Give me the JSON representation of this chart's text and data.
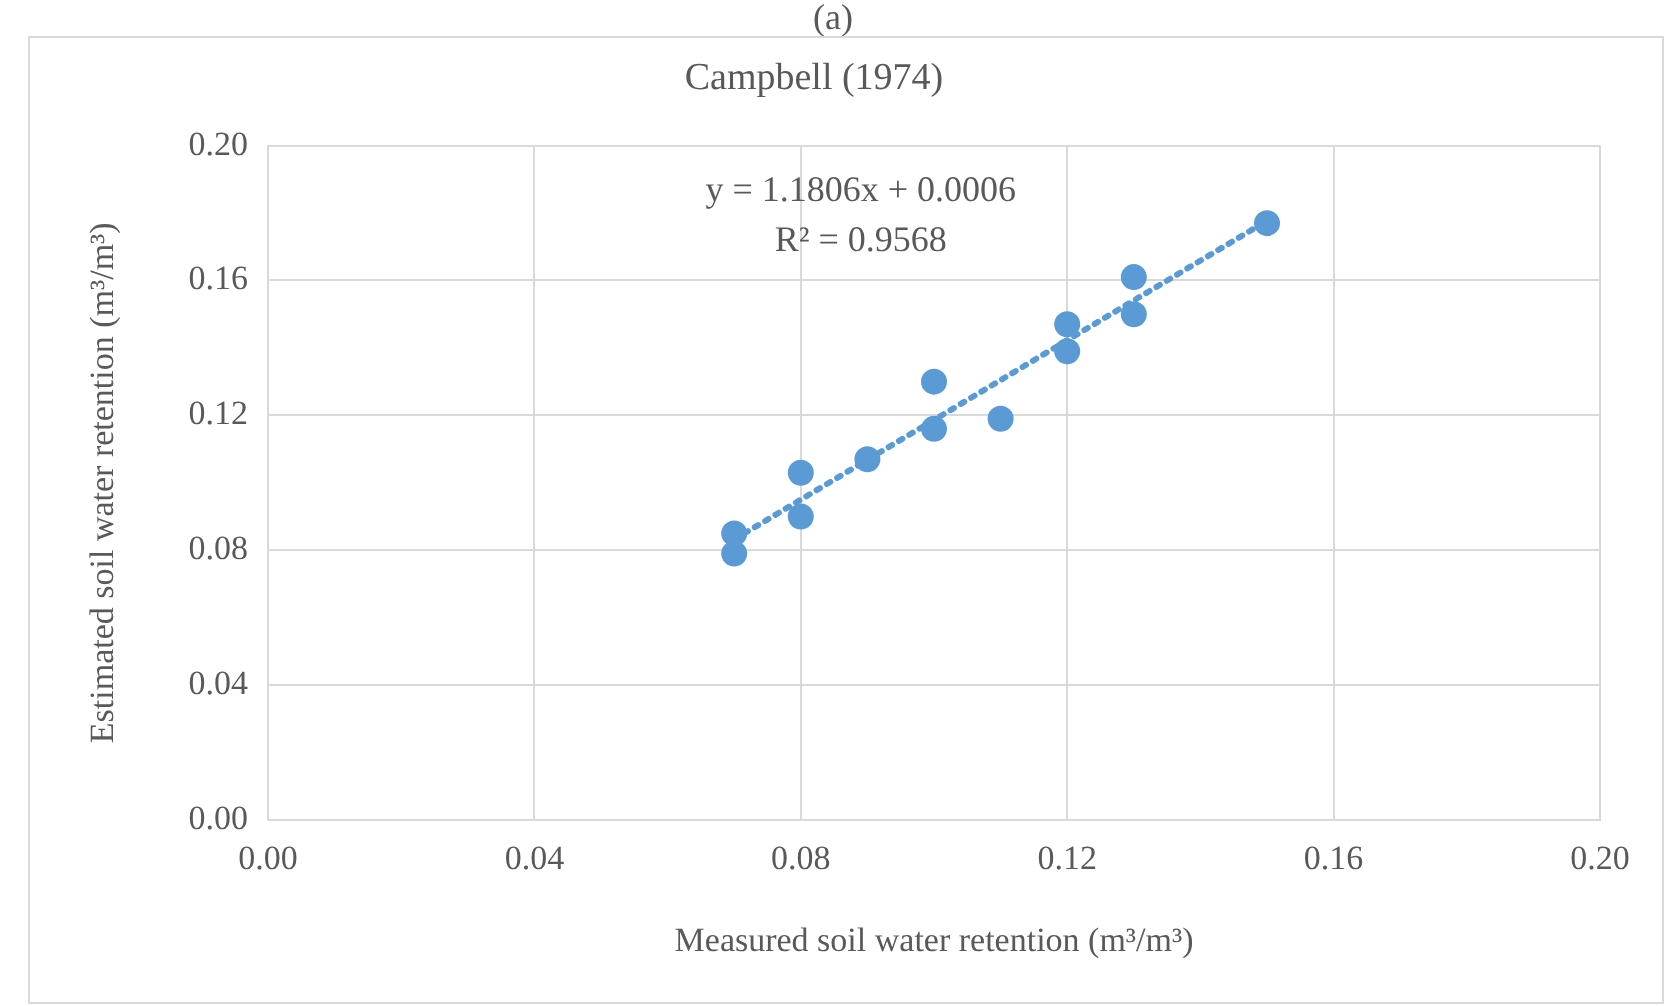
{
  "chart_data": {
    "type": "scatter",
    "title": "Campbell (1974)",
    "xlabel": "Measured soil water retention (m³/m³)",
    "ylabel": "Estimated soil water retention (m³/m³)",
    "annotations": [
      "(a)",
      "y = 1.1806x + 0.0006",
      "R² = 0.9568"
    ],
    "x": [
      0.07,
      0.07,
      0.08,
      0.08,
      0.09,
      0.1,
      0.1,
      0.11,
      0.12,
      0.12,
      0.13,
      0.13,
      0.15
    ],
    "series": [
      {
        "color": "#5b9bd5",
        "values": [
          0.085,
          0.079,
          0.103,
          0.09,
          0.107,
          0.13,
          0.116,
          0.119,
          0.147,
          0.139,
          0.161,
          0.15,
          0.177
        ],
        "marker": "circle"
      },
      {
        "type": "line",
        "color": "#5b9bd5",
        "line_style": "dotted",
        "marker": "none",
        "x": [
          0.07,
          0.15
        ],
        "values": [
          0.0832,
          0.1777
        ]
      }
    ],
    "xlim": [
      0,
      0.2
    ],
    "ylim": [
      0,
      0.2
    ],
    "xticks": [
      {
        "value": 0,
        "label": "0.00"
      },
      {
        "value": 0.04,
        "label": "0.04"
      },
      {
        "value": 0.08,
        "label": "0.08"
      },
      {
        "value": 0.12,
        "label": "0.12"
      },
      {
        "value": 0.16,
        "label": "0.16"
      },
      {
        "value": 0.2,
        "label": "0.20"
      }
    ],
    "yticks": [
      {
        "value": 0,
        "label": "0.00"
      },
      {
        "value": 0.04,
        "label": "0.04"
      },
      {
        "value": 0.08,
        "label": "0.08"
      },
      {
        "value": 0.12,
        "label": "0.12"
      },
      {
        "value": 0.16,
        "label": "0.16"
      },
      {
        "value": 0.2,
        "label": "0.20"
      }
    ],
    "grid": true,
    "legend": false
  }
}
